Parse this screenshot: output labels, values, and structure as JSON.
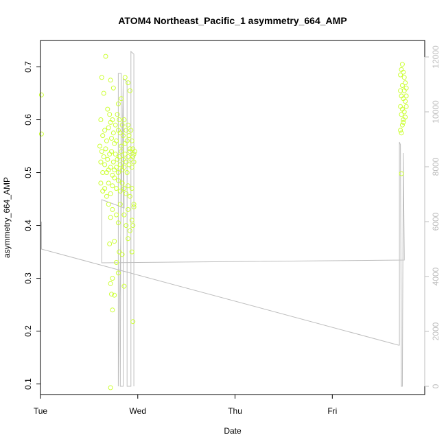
{
  "chart_data": {
    "type": "scatter",
    "title": "ATOM4 Northeast_Pacific_1 asymmetry_664_AMP",
    "xlabel": "Date",
    "ylabel": "asymmetry_664_AMP",
    "xlim": [
      0,
      3.95
    ],
    "ylim": [
      0.08,
      0.75
    ],
    "y2lim": [
      -300,
      12600
    ],
    "x_ticks": [
      {
        "value": 0,
        "label": "Tue"
      },
      {
        "value": 1,
        "label": "Wed"
      },
      {
        "value": 2,
        "label": "Thu"
      },
      {
        "value": 3,
        "label": "Fri"
      }
    ],
    "y_ticks": [
      {
        "value": 0.1,
        "label": "0.1"
      },
      {
        "value": 0.2,
        "label": "0.2"
      },
      {
        "value": 0.3,
        "label": "0.3"
      },
      {
        "value": 0.4,
        "label": "0.4"
      },
      {
        "value": 0.5,
        "label": "0.5"
      },
      {
        "value": 0.6,
        "label": "0.6"
      },
      {
        "value": 0.7,
        "label": "0.7"
      }
    ],
    "y2_ticks": [
      {
        "value": 0,
        "label": "0"
      },
      {
        "value": 2000,
        "label": "2000"
      },
      {
        "value": 4000,
        "label": "4000"
      },
      {
        "value": 6000,
        "label": "6000"
      },
      {
        "value": 8000,
        "label": "8000"
      },
      {
        "value": 10000,
        "label": "10000"
      },
      {
        "value": 12000,
        "label": "12000"
      }
    ],
    "grid": false,
    "legend": "none",
    "colors": {
      "points": "#ccff33",
      "line": "#bdbdbd",
      "axes": "#000000"
    },
    "series": [
      {
        "kind": "points",
        "axis": "left",
        "points": [
          [
            0.01,
            0.647
          ],
          [
            0.01,
            0.573
          ],
          [
            0.63,
            0.68
          ],
          [
            0.67,
            0.72
          ],
          [
            0.65,
            0.65
          ],
          [
            0.72,
            0.675
          ],
          [
            0.75,
            0.66
          ],
          [
            0.8,
            0.63
          ],
          [
            0.83,
            0.64
          ],
          [
            0.87,
            0.68
          ],
          [
            0.9,
            0.67
          ],
          [
            0.92,
            0.655
          ],
          [
            0.62,
            0.6
          ],
          [
            0.64,
            0.57
          ],
          [
            0.66,
            0.58
          ],
          [
            0.68,
            0.56
          ],
          [
            0.69,
            0.62
          ],
          [
            0.7,
            0.585
          ],
          [
            0.71,
            0.61
          ],
          [
            0.72,
            0.595
          ],
          [
            0.73,
            0.565
          ],
          [
            0.74,
            0.6
          ],
          [
            0.75,
            0.575
          ],
          [
            0.76,
            0.555
          ],
          [
            0.77,
            0.59
          ],
          [
            0.78,
            0.56
          ],
          [
            0.79,
            0.61
          ],
          [
            0.8,
            0.58
          ],
          [
            0.81,
            0.6
          ],
          [
            0.82,
            0.575
          ],
          [
            0.83,
            0.55
          ],
          [
            0.84,
            0.59
          ],
          [
            0.85,
            0.57
          ],
          [
            0.86,
            0.6
          ],
          [
            0.87,
            0.555
          ],
          [
            0.88,
            0.58
          ],
          [
            0.89,
            0.56
          ],
          [
            0.9,
            0.59
          ],
          [
            0.91,
            0.57
          ],
          [
            0.92,
            0.545
          ],
          [
            0.93,
            0.58
          ],
          [
            0.94,
            0.56
          ],
          [
            0.95,
            0.545
          ],
          [
            0.96,
            0.535
          ],
          [
            0.61,
            0.55
          ],
          [
            0.62,
            0.52
          ],
          [
            0.63,
            0.54
          ],
          [
            0.64,
            0.5
          ],
          [
            0.65,
            0.53
          ],
          [
            0.66,
            0.515
          ],
          [
            0.67,
            0.545
          ],
          [
            0.68,
            0.5
          ],
          [
            0.69,
            0.525
          ],
          [
            0.7,
            0.505
          ],
          [
            0.71,
            0.535
          ],
          [
            0.72,
            0.51
          ],
          [
            0.73,
            0.54
          ],
          [
            0.74,
            0.495
          ],
          [
            0.75,
            0.52
          ],
          [
            0.76,
            0.505
          ],
          [
            0.77,
            0.535
          ],
          [
            0.78,
            0.51
          ],
          [
            0.79,
            0.525
          ],
          [
            0.8,
            0.5
          ],
          [
            0.81,
            0.53
          ],
          [
            0.82,
            0.515
          ],
          [
            0.83,
            0.54
          ],
          [
            0.84,
            0.505
          ],
          [
            0.85,
            0.525
          ],
          [
            0.86,
            0.51
          ],
          [
            0.87,
            0.535
          ],
          [
            0.88,
            0.52
          ],
          [
            0.89,
            0.5
          ],
          [
            0.9,
            0.53
          ],
          [
            0.91,
            0.515
          ],
          [
            0.92,
            0.54
          ],
          [
            0.93,
            0.525
          ],
          [
            0.94,
            0.51
          ],
          [
            0.95,
            0.53
          ],
          [
            0.96,
            0.52
          ],
          [
            0.97,
            0.54
          ],
          [
            0.62,
            0.48
          ],
          [
            0.64,
            0.465
          ],
          [
            0.66,
            0.47
          ],
          [
            0.68,
            0.455
          ],
          [
            0.7,
            0.48
          ],
          [
            0.72,
            0.46
          ],
          [
            0.74,
            0.475
          ],
          [
            0.76,
            0.49
          ],
          [
            0.78,
            0.47
          ],
          [
            0.8,
            0.485
          ],
          [
            0.82,
            0.465
          ],
          [
            0.84,
            0.48
          ],
          [
            0.86,
            0.47
          ],
          [
            0.88,
            0.46
          ],
          [
            0.9,
            0.475
          ],
          [
            0.92,
            0.455
          ],
          [
            0.94,
            0.47
          ],
          [
            0.96,
            0.44
          ],
          [
            0.7,
            0.44
          ],
          [
            0.74,
            0.43
          ],
          [
            0.78,
            0.42
          ],
          [
            0.82,
            0.44
          ],
          [
            0.86,
            0.42
          ],
          [
            0.9,
            0.43
          ],
          [
            0.94,
            0.41
          ],
          [
            0.96,
            0.435
          ],
          [
            0.72,
            0.415
          ],
          [
            0.8,
            0.405
          ],
          [
            0.88,
            0.4
          ],
          [
            0.92,
            0.39
          ],
          [
            0.95,
            0.4
          ],
          [
            0.71,
            0.365
          ],
          [
            0.76,
            0.37
          ],
          [
            0.81,
            0.35
          ],
          [
            0.84,
            0.345
          ],
          [
            0.9,
            0.375
          ],
          [
            0.94,
            0.35
          ],
          [
            0.78,
            0.33
          ],
          [
            0.74,
            0.3
          ],
          [
            0.72,
            0.29
          ],
          [
            0.8,
            0.31
          ],
          [
            0.73,
            0.27
          ],
          [
            0.76,
            0.268
          ],
          [
            0.86,
            0.285
          ],
          [
            0.74,
            0.24
          ],
          [
            0.95,
            0.218
          ],
          [
            0.72,
            0.093
          ],
          [
            3.7,
            0.685
          ],
          [
            3.71,
            0.695
          ],
          [
            3.72,
            0.705
          ],
          [
            3.73,
            0.69
          ],
          [
            3.74,
            0.68
          ],
          [
            3.75,
            0.67
          ],
          [
            3.76,
            0.66
          ],
          [
            3.7,
            0.655
          ],
          [
            3.71,
            0.645
          ],
          [
            3.72,
            0.665
          ],
          [
            3.73,
            0.64
          ],
          [
            3.74,
            0.655
          ],
          [
            3.75,
            0.635
          ],
          [
            3.76,
            0.645
          ],
          [
            3.7,
            0.625
          ],
          [
            3.71,
            0.61
          ],
          [
            3.72,
            0.62
          ],
          [
            3.73,
            0.6
          ],
          [
            3.74,
            0.615
          ],
          [
            3.75,
            0.605
          ],
          [
            3.76,
            0.625
          ],
          [
            3.7,
            0.58
          ],
          [
            3.71,
            0.575
          ],
          [
            3.72,
            0.59
          ],
          [
            3.73,
            0.595
          ],
          [
            3.71,
            0.498
          ]
        ]
      },
      {
        "kind": "line",
        "axis": "right",
        "points": [
          [
            0.01,
            6000
          ],
          [
            0.01,
            5000
          ],
          [
            3.68,
            1500
          ],
          [
            3.69,
            1500
          ],
          [
            3.69,
            8900
          ],
          [
            3.7,
            8800
          ],
          [
            3.71,
            0
          ],
          [
            3.72,
            0
          ],
          [
            3.73,
            8500
          ],
          [
            3.735,
            6500
          ],
          [
            3.74,
            4800
          ],
          [
            3.74,
            4600
          ],
          [
            0.63,
            4500
          ],
          [
            0.63,
            6800
          ],
          [
            0.86,
            6500
          ],
          [
            0.85,
            11000
          ],
          [
            0.8,
            0
          ],
          [
            0.8,
            11400
          ],
          [
            0.83,
            11400
          ],
          [
            0.82,
            0
          ],
          [
            0.85,
            0
          ],
          [
            0.85,
            11200
          ],
          [
            0.89,
            11100
          ],
          [
            0.89,
            0
          ],
          [
            0.93,
            0
          ],
          [
            0.93,
            12200
          ],
          [
            0.96,
            12100
          ],
          [
            0.96,
            0
          ]
        ]
      }
    ]
  }
}
